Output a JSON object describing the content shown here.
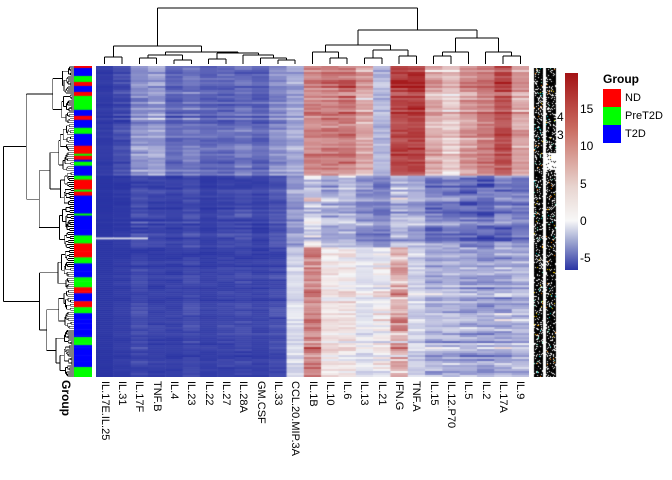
{
  "page": {
    "background": "#FFFFFF"
  },
  "row_annotation_label": "Group",
  "stray_row_labels": [
    "4",
    "3"
  ],
  "legend": {
    "title": "Group",
    "items": [
      {
        "label": "ND",
        "color": "#FF0000"
      },
      {
        "label": "PreT2D",
        "color": "#00FF00"
      },
      {
        "label": "T2D",
        "color": "#0000FF"
      }
    ]
  },
  "chart_data": {
    "type": "heatmap",
    "title": "",
    "columns": [
      "IL.17E.IL.25",
      "IL.31",
      "IL.17F",
      "TNF.B",
      "IL.4",
      "IL.23",
      "IL.22",
      "IL.27",
      "IL.28A",
      "GM.CSF",
      "IL.33",
      "CCL.20.MIP.3A",
      "IL.1B",
      "IL.10",
      "IL.6",
      "IL.13",
      "IL.21",
      "IFN.G",
      "TNF.A",
      "IL.15",
      "IL.12.P70",
      "IL.5",
      "IL.2",
      "IL.17A",
      "IL.9"
    ],
    "row_labels_legible": false,
    "n_rows_estimate": 156,
    "row_annotation": {
      "name": "Group",
      "levels": [
        "ND",
        "PreT2D",
        "T2D"
      ],
      "colors": [
        "#FF0000",
        "#00FF00",
        "#0000FF"
      ]
    },
    "scale": {
      "ticks": [
        "15",
        "10",
        "5",
        "0",
        "-5"
      ],
      "gradient_high": "#A31214",
      "gradient_mid": "#F7F7F7",
      "gradient_low": "#2A34A4"
    },
    "row_bands": {
      "top": [
        0,
        0.35
      ],
      "mid": [
        0.35,
        0.58
      ],
      "low": [
        0.58,
        1.0
      ]
    },
    "column_profile": [
      {
        "name": "IL.17E.IL.25",
        "top": [
          -0.95,
          0.04
        ],
        "mid": [
          -1.0,
          0.02
        ],
        "low": [
          -1.0,
          0.02
        ]
      },
      {
        "name": "IL.31",
        "top": [
          -0.85,
          0.12
        ],
        "mid": [
          -0.97,
          0.04
        ],
        "low": [
          -0.97,
          0.04
        ]
      },
      {
        "name": "IL.17F",
        "top": [
          -0.45,
          0.22
        ],
        "mid": [
          -0.85,
          0.18
        ],
        "low": [
          -0.9,
          0.12
        ]
      },
      {
        "name": "TNF.B",
        "top": [
          -0.38,
          0.22
        ],
        "mid": [
          -0.9,
          0.14
        ],
        "low": [
          -0.95,
          0.08
        ]
      },
      {
        "name": "IL.4",
        "top": [
          -0.7,
          0.18
        ],
        "mid": [
          -0.92,
          0.1
        ],
        "low": [
          -0.95,
          0.07
        ]
      },
      {
        "name": "IL.23",
        "top": [
          -0.6,
          0.22
        ],
        "mid": [
          -0.85,
          0.15
        ],
        "low": [
          -0.9,
          0.12
        ]
      },
      {
        "name": "IL.22",
        "top": [
          -0.72,
          0.15
        ],
        "mid": [
          -0.93,
          0.08
        ],
        "low": [
          -0.95,
          0.06
        ]
      },
      {
        "name": "IL.27",
        "top": [
          -0.7,
          0.18
        ],
        "mid": [
          -0.88,
          0.12
        ],
        "low": [
          -0.92,
          0.1
        ]
      },
      {
        "name": "IL.28A",
        "top": [
          -0.62,
          0.2
        ],
        "mid": [
          -0.85,
          0.15
        ],
        "low": [
          -0.9,
          0.12
        ]
      },
      {
        "name": "GM.CSF",
        "top": [
          -0.72,
          0.16
        ],
        "mid": [
          -0.9,
          0.1
        ],
        "low": [
          -0.93,
          0.08
        ]
      },
      {
        "name": "IL.33",
        "top": [
          -0.5,
          0.18
        ],
        "mid": [
          -0.8,
          0.15
        ],
        "low": [
          -0.88,
          0.12
        ]
      },
      {
        "name": "CCL.20.MIP.3A",
        "top": [
          -0.35,
          0.18
        ],
        "mid": [
          -0.4,
          0.2
        ],
        "low": [
          -0.12,
          0.15
        ]
      },
      {
        "name": "IL.1B",
        "top": [
          0.45,
          0.2
        ],
        "mid": [
          -0.1,
          0.35
        ],
        "low": [
          0.45,
          0.25
        ]
      },
      {
        "name": "IL.10",
        "top": [
          0.5,
          0.22
        ],
        "mid": [
          -0.3,
          0.3
        ],
        "low": [
          0.05,
          0.12
        ]
      },
      {
        "name": "IL.6",
        "top": [
          0.55,
          0.28
        ],
        "mid": [
          -0.25,
          0.3
        ],
        "low": [
          0.05,
          0.15
        ]
      },
      {
        "name": "IL.13",
        "top": [
          0.3,
          0.22
        ],
        "mid": [
          -0.45,
          0.3
        ],
        "low": [
          -0.08,
          0.12
        ]
      },
      {
        "name": "IL.21",
        "top": [
          -0.25,
          0.15
        ],
        "mid": [
          -0.5,
          0.3
        ],
        "low": [
          0.0,
          0.18
        ]
      },
      {
        "name": "IFN.G",
        "top": [
          0.75,
          0.2
        ],
        "mid": [
          -0.2,
          0.4
        ],
        "low": [
          0.3,
          0.3
        ]
      },
      {
        "name": "TNF.A",
        "top": [
          0.8,
          0.18
        ],
        "mid": [
          -0.3,
          0.3
        ],
        "low": [
          -0.15,
          0.15
        ]
      },
      {
        "name": "IL.15",
        "top": [
          0.3,
          0.2
        ],
        "mid": [
          -0.55,
          0.35
        ],
        "low": [
          -0.3,
          0.25
        ]
      },
      {
        "name": "IL.12.P70",
        "top": [
          0.18,
          0.18
        ],
        "mid": [
          -0.5,
          0.3
        ],
        "low": [
          -0.3,
          0.25
        ]
      },
      {
        "name": "IL.5",
        "top": [
          0.4,
          0.22
        ],
        "mid": [
          -0.6,
          0.35
        ],
        "low": [
          -0.35,
          0.28
        ]
      },
      {
        "name": "IL.2",
        "top": [
          0.5,
          0.2
        ],
        "mid": [
          -0.65,
          0.35
        ],
        "low": [
          -0.4,
          0.3
        ]
      },
      {
        "name": "IL.17A",
        "top": [
          0.7,
          0.22
        ],
        "mid": [
          -0.5,
          0.4
        ],
        "low": [
          -0.35,
          0.35
        ]
      },
      {
        "name": "IL.9",
        "top": [
          0.35,
          0.2
        ],
        "mid": [
          -0.55,
          0.3
        ],
        "low": [
          -0.3,
          0.25
        ]
      }
    ]
  }
}
